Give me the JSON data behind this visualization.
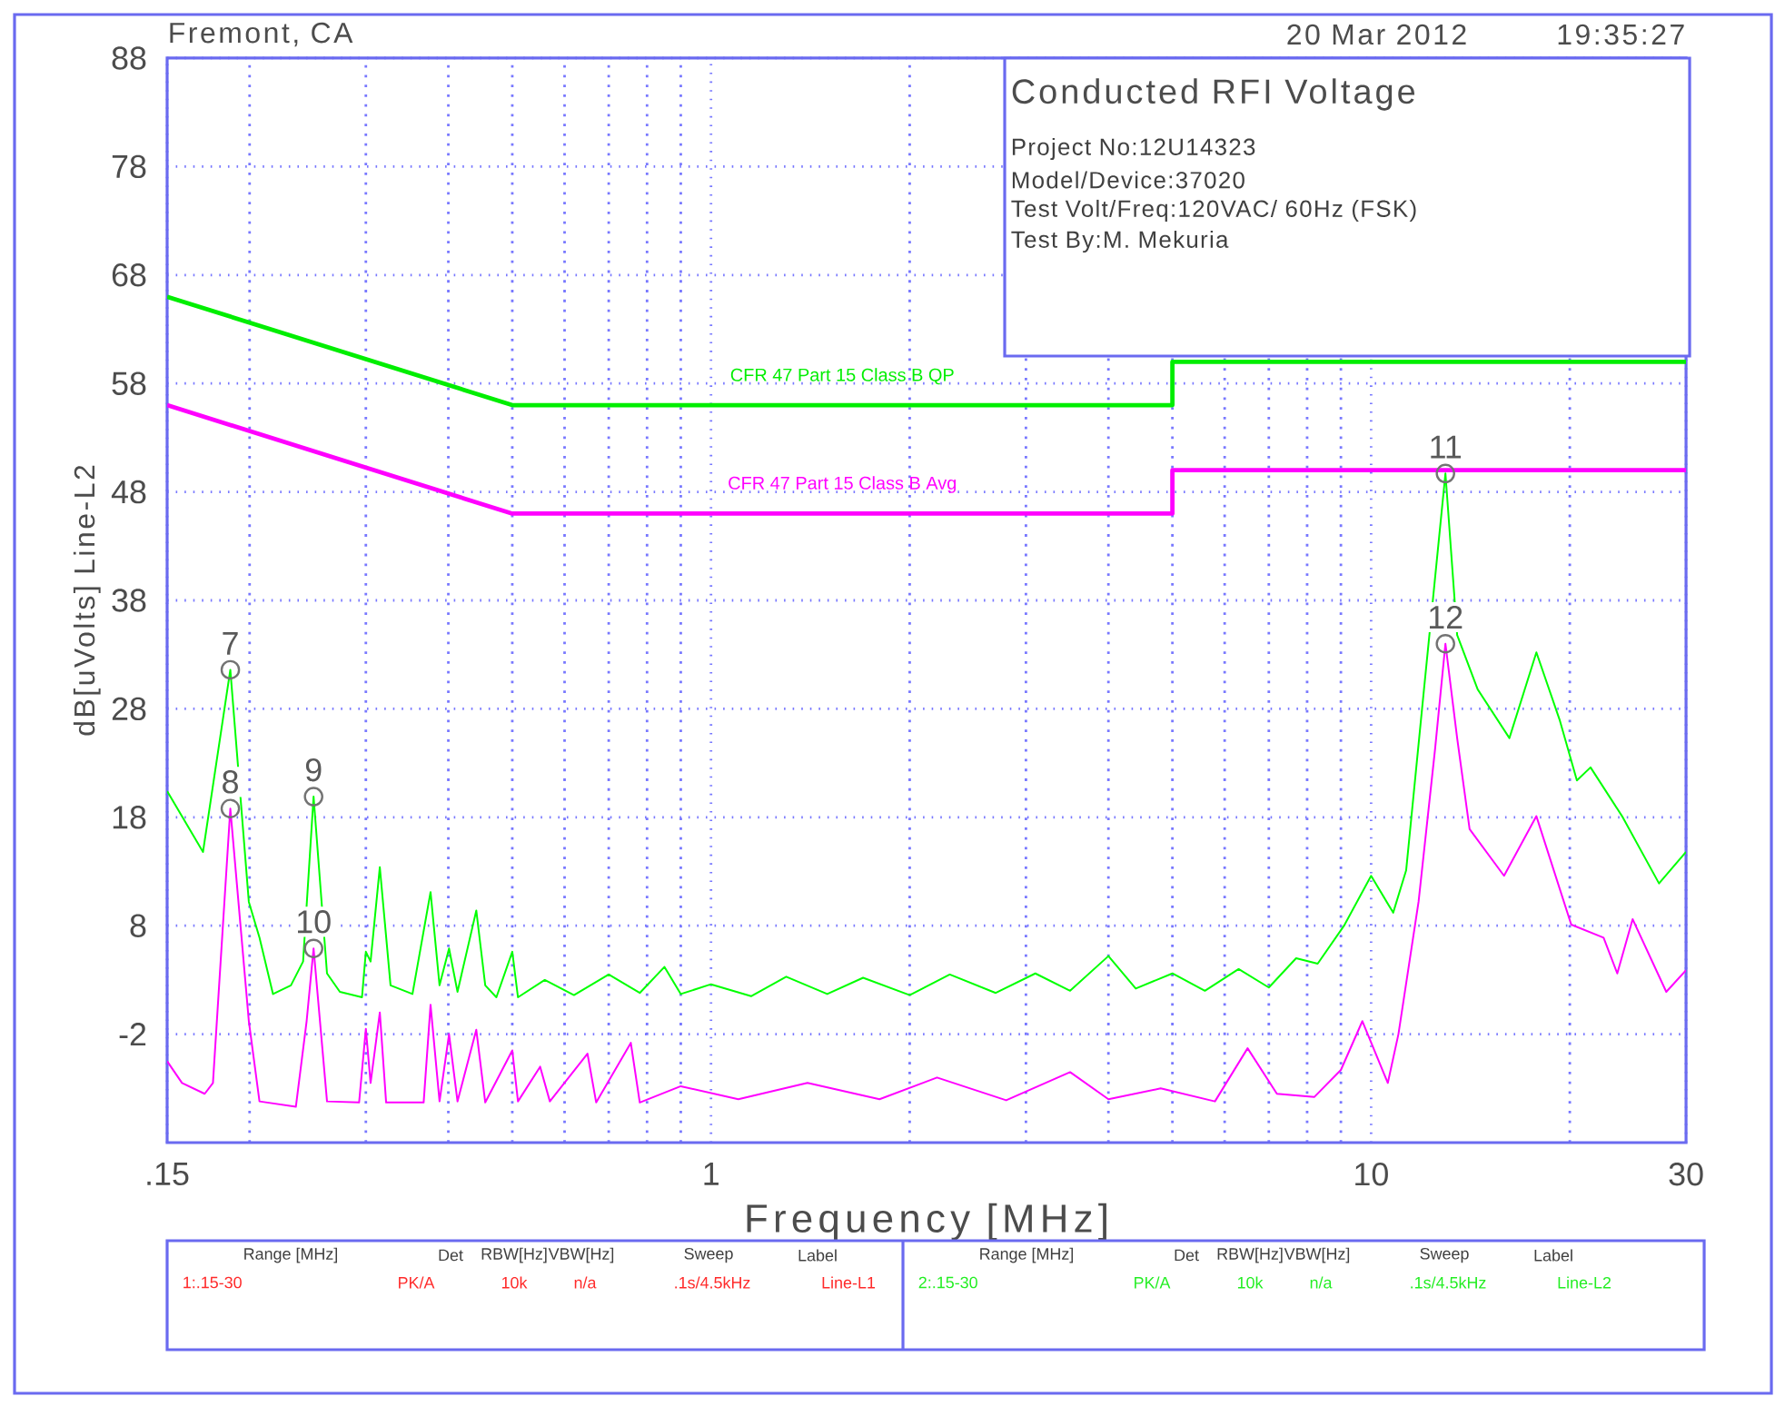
{
  "chart_data": {
    "type": "line",
    "title": "Conducted RFI Voltage",
    "xlabel": "Frequency [MHz]",
    "ylabel": "dB[uVolts] Line-L2",
    "log": "x",
    "grid": true,
    "xlim": [
      0.15,
      30
    ],
    "ylim": [
      -12,
      88
    ],
    "xticks": [
      {
        "value": 0.15,
        "label": ".15"
      },
      1,
      10,
      30
    ],
    "yticks": [
      -2,
      8,
      18,
      28,
      38,
      48,
      58,
      68,
      78,
      88
    ],
    "series": [
      {
        "name": "CFR 47 Part 15 Class B QP",
        "color": "#00ee00",
        "x": [
          0.15,
          0.5,
          5,
          5,
          30
        ],
        "values": [
          66,
          56,
          56,
          60,
          60
        ]
      },
      {
        "name": "CFR 47 Part 15 Class B Avg",
        "color": "#ff00ff",
        "x": [
          0.15,
          0.5,
          5,
          5,
          30
        ],
        "values": [
          56,
          46,
          46,
          50,
          50
        ]
      },
      {
        "color": "#00ff00",
        "x": [
          0.15,
          0.17,
          0.187,
          0.1995,
          0.207,
          0.217,
          0.231,
          0.241,
          0.25,
          0.262,
          0.274,
          0.296,
          0.3,
          0.305,
          0.315,
          0.327,
          0.353,
          0.376,
          0.388,
          0.401,
          0.413,
          0.441,
          0.455,
          0.473,
          0.5,
          0.51,
          0.56,
          0.62,
          0.7,
          0.78,
          0.85,
          0.9,
          1.0,
          1.15,
          1.3,
          1.5,
          1.7,
          2.0,
          2.3,
          2.7,
          3.1,
          3.5,
          4.0,
          4.4,
          5.0,
          5.6,
          6.3,
          7.0,
          7.7,
          8.3,
          9.1,
          10.0,
          10.8,
          11.3,
          11.9,
          12.96,
          13.5,
          14.5,
          16.2,
          17.8,
          19.3,
          20.5,
          21.5,
          24.0,
          27.3,
          30
        ],
        "values": [
          20.4,
          14.8,
          31.6,
          10.2,
          6.9,
          1.7,
          2.5,
          4.7,
          19.9,
          3.6,
          1.9,
          1.4,
          5.6,
          4.7,
          13.4,
          2.5,
          1.7,
          11.1,
          2.5,
          5.9,
          1.9,
          9.4,
          2.5,
          1.4,
          5.6,
          1.4,
          3.0,
          1.6,
          3.5,
          1.8,
          4.2,
          1.7,
          2.6,
          1.5,
          3.3,
          1.7,
          3.2,
          1.6,
          3.5,
          1.8,
          3.6,
          2.0,
          5.2,
          2.2,
          3.6,
          2.0,
          4.0,
          2.3,
          5.0,
          4.5,
          8.0,
          12.6,
          9.2,
          13.1,
          27.0,
          49.7,
          34.8,
          29.8,
          25.3,
          33.2,
          27.0,
          21.4,
          22.6,
          18.1,
          11.9,
          14.8
        ]
      },
      {
        "color": "#ff00ff",
        "x": [
          0.15,
          0.158,
          0.171,
          0.176,
          0.187,
          0.1995,
          0.207,
          0.235,
          0.244,
          0.25,
          0.262,
          0.293,
          0.3,
          0.305,
          0.315,
          0.322,
          0.367,
          0.376,
          0.388,
          0.401,
          0.413,
          0.441,
          0.455,
          0.5,
          0.51,
          0.551,
          0.57,
          0.65,
          0.67,
          0.756,
          0.78,
          0.9,
          1.1,
          1.4,
          1.8,
          2.2,
          2.8,
          3.5,
          4.0,
          4.8,
          5.8,
          6.5,
          7.2,
          8.2,
          9.0,
          9.7,
          10.6,
          11.0,
          11.8,
          12.5,
          12.96,
          13.5,
          14.1,
          15.9,
          17.8,
          20.1,
          22.5,
          23.6,
          24.9,
          28.0,
          30
        ],
        "values": [
          -4.5,
          -6.5,
          -7.5,
          -6.5,
          18.8,
          -0.8,
          -8.2,
          -8.7,
          -0.8,
          5.9,
          -8.2,
          -8.3,
          -1.5,
          -6.5,
          0.0,
          -8.3,
          -8.3,
          0.7,
          -8.2,
          -2.0,
          -8.2,
          -1.6,
          -8.3,
          -3.5,
          -8.2,
          -5.0,
          -8.2,
          -3.8,
          -8.3,
          -2.8,
          -8.3,
          -6.8,
          -8.0,
          -6.5,
          -8.0,
          -6.0,
          -8.1,
          -5.5,
          -8.0,
          -7.0,
          -8.2,
          -3.3,
          -7.5,
          -7.8,
          -5.3,
          -0.8,
          -6.5,
          -2.0,
          10.2,
          24.3,
          34.0,
          25.3,
          16.9,
          12.6,
          18.1,
          8.1,
          6.9,
          3.6,
          8.6,
          1.9,
          3.9
        ]
      }
    ],
    "annotations": [
      "Fremont, CA",
      "20 Mar 2012",
      "19:35:27",
      "Project No:12U14323",
      "Model/Device:37020",
      "Test Volt/Freq:120VAC/ 60Hz (FSK)",
      "Test By:M. Mekuria",
      "Range [MHz]",
      "Det",
      "RBW[Hz]",
      "VBW[Hz]",
      "Sweep",
      "Label",
      "1:.15-30",
      "PK/A",
      "10k",
      "n/a",
      ".1s/4.5kHz",
      "Line-L1",
      "Range [MHz]",
      "Det",
      "RBW[Hz]",
      "VBW[Hz]",
      "Sweep",
      "Label",
      "2:.15-30",
      "PK/A",
      "10k",
      "n/a",
      ".1s/4.5kHz",
      "Line-L2",
      {
        "text": "7",
        "x": 0.187,
        "y": 31.6
      },
      {
        "text": "8",
        "x": 0.187,
        "y": 18.8
      },
      {
        "text": "9",
        "x": 0.25,
        "y": 19.9
      },
      {
        "text": "10",
        "x": 0.25,
        "y": 5.9
      },
      {
        "text": "11",
        "x": 12.96,
        "y": 49.7
      },
      {
        "text": "12",
        "x": 12.96,
        "y": 34.0
      }
    ]
  }
}
